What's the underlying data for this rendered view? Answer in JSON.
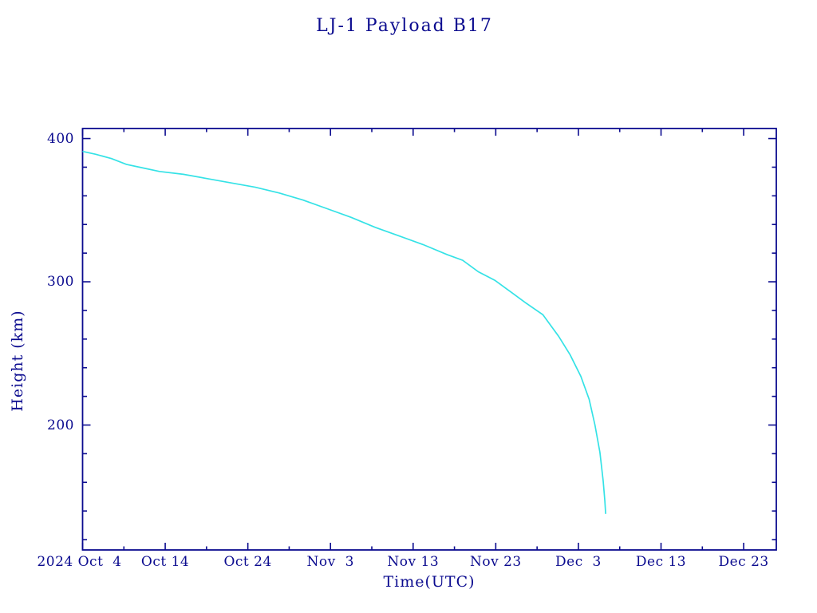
{
  "page": {
    "background": "#ffffff"
  },
  "chart_data": {
    "type": "line",
    "title": "LJ-1 Payload B17",
    "xlabel": "Time(UTC)",
    "ylabel": "Height (km)",
    "axis_color": "#0b0b8f",
    "grid": false,
    "legend": false,
    "x_axis": {
      "epoch": "2024-10-04",
      "unit": "days since 2024 Oct 4 (UTC)",
      "range_days": [
        0,
        83.95
      ],
      "major_tick_days": [
        0,
        10,
        20,
        30,
        40,
        50,
        60,
        70,
        80
      ],
      "major_tick_labels": [
        "2024 Oct  4",
        "Oct 14",
        "Oct 24",
        "Nov  3",
        "Nov 13",
        "Nov 23",
        "Dec  3",
        "Dec 13",
        "Dec 23"
      ],
      "minor_tick_days": [
        5,
        15,
        25,
        35,
        45,
        55,
        65,
        75
      ]
    },
    "y_axis": {
      "unit": "km",
      "range": [
        112.8,
        407
      ],
      "major_ticks": [
        200,
        300,
        400
      ],
      "major_tick_labels": [
        "200",
        "300",
        "400"
      ],
      "minor_ticks": [
        120,
        140,
        160,
        180,
        220,
        240,
        260,
        280,
        320,
        340,
        360,
        380
      ]
    },
    "series": [
      {
        "name": "payload-orbit-height-decay",
        "color": "#35e2e6",
        "points_day_height": [
          [
            0,
            391
          ],
          [
            1.6,
            389
          ],
          [
            3.5,
            386
          ],
          [
            5.3,
            382
          ],
          [
            6.9,
            380
          ],
          [
            9.3,
            377
          ],
          [
            12.2,
            375
          ],
          [
            15.1,
            372
          ],
          [
            18.0,
            369
          ],
          [
            20.9,
            366
          ],
          [
            23.8,
            362
          ],
          [
            26.7,
            357
          ],
          [
            29.6,
            351
          ],
          [
            32.5,
            345
          ],
          [
            35.4,
            338
          ],
          [
            38.3,
            332
          ],
          [
            41.2,
            326
          ],
          [
            44.1,
            319
          ],
          [
            46.0,
            315
          ],
          [
            47.9,
            307
          ],
          [
            49.9,
            301
          ],
          [
            51.8,
            293
          ],
          [
            53.7,
            285
          ],
          [
            55.7,
            277
          ],
          [
            57.6,
            262
          ],
          [
            59.0,
            249
          ],
          [
            60.3,
            234
          ],
          [
            61.3,
            218
          ],
          [
            62.0,
            200
          ],
          [
            62.6,
            181
          ],
          [
            63.0,
            161
          ],
          [
            63.2,
            147
          ],
          [
            63.3,
            138
          ]
        ]
      }
    ]
  }
}
